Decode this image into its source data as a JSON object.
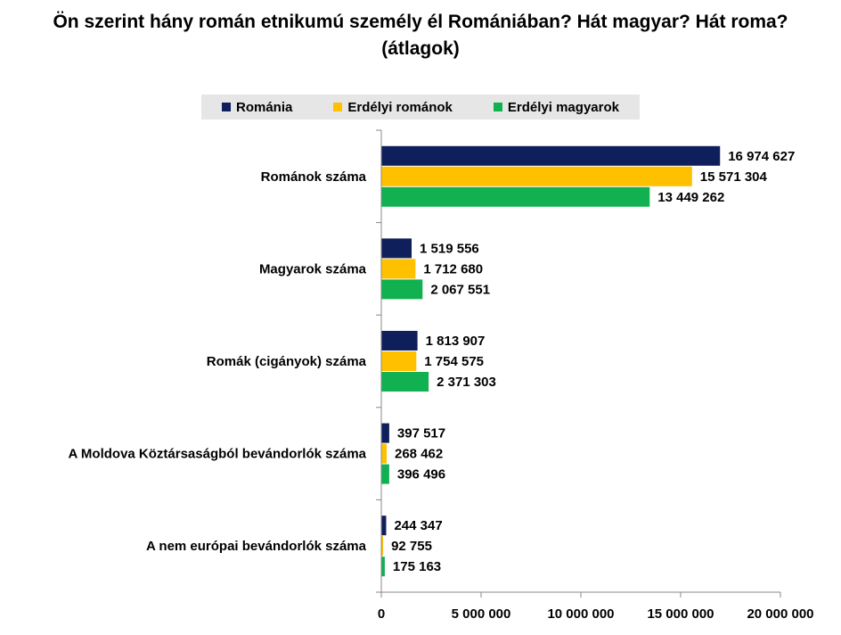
{
  "chart_data": {
    "type": "bar",
    "orientation": "horizontal",
    "title": "Ön szerint hány román etnikumú személy él Romániában? Hát magyar? Hát roma? (átlagok)",
    "categories": [
      "Románok száma",
      "Magyarok száma",
      "Romák (cigányok) száma",
      "A Moldova Köztársaságból bevándorlók száma",
      "A nem európai bevándorlók száma"
    ],
    "series": [
      {
        "name": "Románia",
        "color": "#0f1f5c",
        "values": [
          16974627,
          1519556,
          1813907,
          397517,
          244347
        ],
        "labels": [
          "16 974 627",
          "1 519 556",
          "1 813 907",
          "397 517",
          "244 347"
        ]
      },
      {
        "name": "Erdélyi románok",
        "color": "#ffc000",
        "values": [
          15571304,
          1712680,
          1754575,
          268462,
          92755
        ],
        "labels": [
          "15 571 304",
          "1 712 680",
          "1 754 575",
          "268 462",
          "92 755"
        ]
      },
      {
        "name": "Erdélyi magyarok",
        "color": "#11b050",
        "values": [
          13449262,
          2067551,
          2371303,
          396496,
          175163
        ],
        "labels": [
          "13 449 262",
          "2 067 551",
          "2 371 303",
          "396 496",
          "175 163"
        ]
      }
    ],
    "xlim": [
      0,
      20000000
    ],
    "xticks": [
      0,
      5000000,
      10000000,
      15000000,
      20000000
    ],
    "xtick_labels": [
      "0",
      "5 000 000",
      "10 000 000",
      "15 000 000",
      "20 000 000"
    ],
    "legend_position": "top",
    "grid": false
  }
}
